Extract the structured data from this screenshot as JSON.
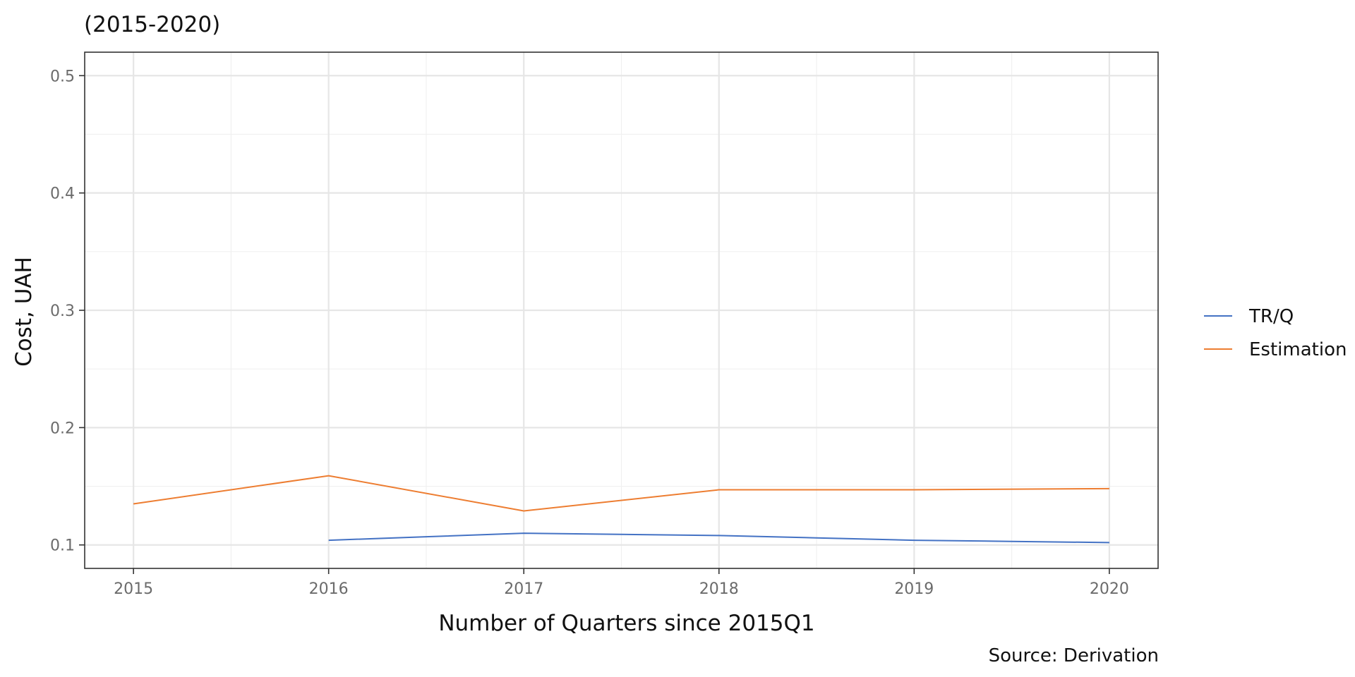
{
  "chart_data": {
    "type": "line",
    "subtitle": "(2015-2020)",
    "xlabel": "Number of Quarters since 2015Q1",
    "ylabel": "Cost, UAH",
    "caption": "Source: Derivation",
    "xlim": [
      2014.75,
      2020.25
    ],
    "ylim": [
      0.08,
      0.52
    ],
    "x_ticks": [
      2015,
      2016,
      2017,
      2018,
      2019,
      2020
    ],
    "y_ticks": [
      0.1,
      0.2,
      0.3,
      0.4,
      0.5
    ],
    "x_tick_labels": [
      "2015",
      "2016",
      "2017",
      "2018",
      "2019",
      "2020"
    ],
    "y_tick_labels": [
      "0.1",
      "0.2",
      "0.3",
      "0.4",
      "0.5"
    ],
    "grid": true,
    "legend_position": "right",
    "series": [
      {
        "name": "TR/Q",
        "color": "#4472c4",
        "points": [
          {
            "x": 2016,
            "y": 0.104
          },
          {
            "x": 2016.5,
            "y": 0.107
          },
          {
            "x": 2017,
            "y": 0.11
          },
          {
            "x": 2017.5,
            "y": 0.109
          },
          {
            "x": 2018,
            "y": 0.108
          },
          {
            "x": 2018.5,
            "y": 0.106
          },
          {
            "x": 2019,
            "y": 0.104
          },
          {
            "x": 2019.5,
            "y": 0.103
          },
          {
            "x": 2020,
            "y": 0.102
          }
        ]
      },
      {
        "name": "Estimation",
        "color": "#ed7d31",
        "points": [
          {
            "x": 2015,
            "y": 0.135
          },
          {
            "x": 2016,
            "y": 0.159
          },
          {
            "x": 2017,
            "y": 0.129
          },
          {
            "x": 2018,
            "y": 0.147
          },
          {
            "x": 2019,
            "y": 0.147
          },
          {
            "x": 2020,
            "y": 0.148
          }
        ]
      }
    ]
  }
}
